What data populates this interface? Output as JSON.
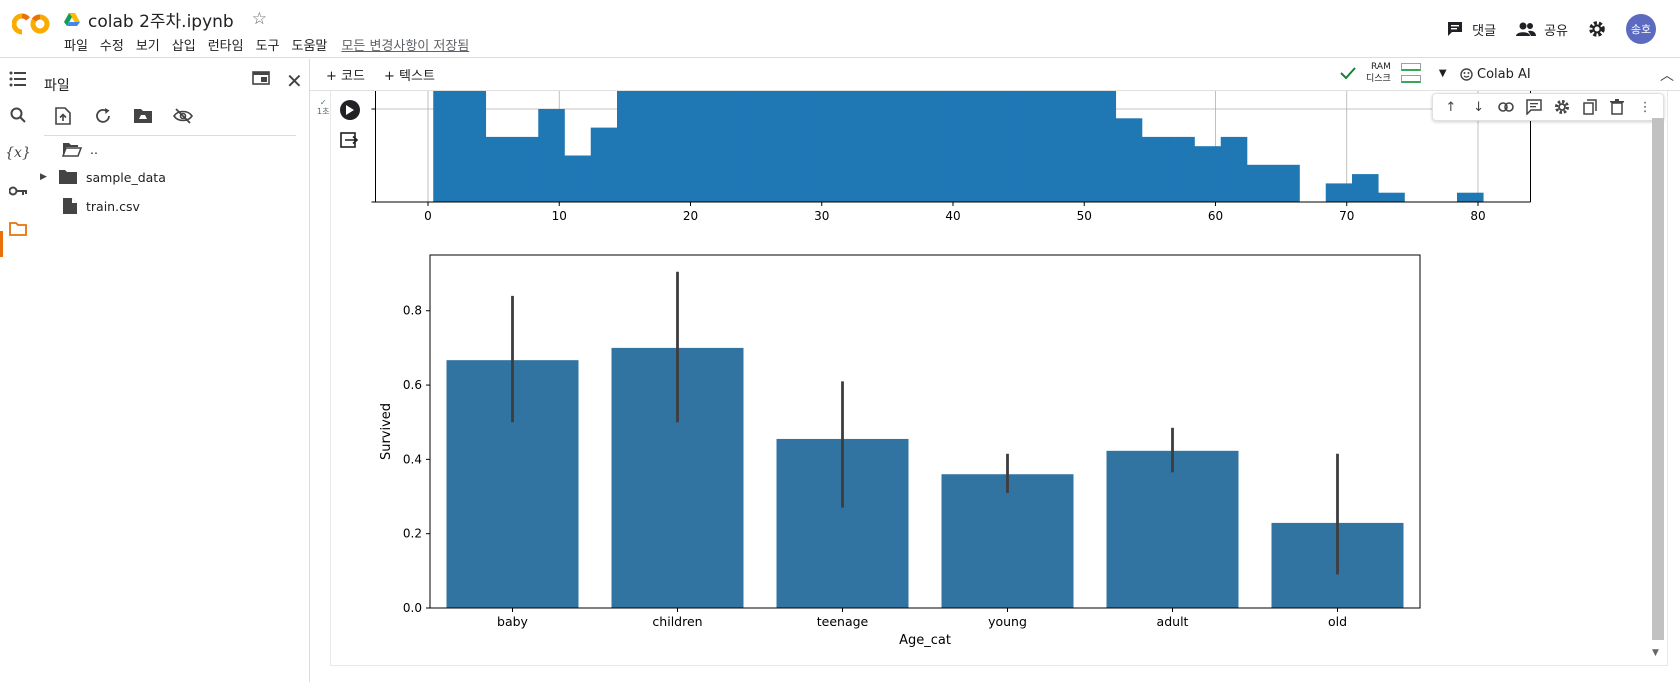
{
  "app": {
    "title": "colab 2주차.ipynb",
    "menu": [
      "파일",
      "수정",
      "보기",
      "삽입",
      "런타임",
      "도구",
      "도움말"
    ],
    "saved_status": "모든 변경사항이 저장됨",
    "comments_label": "댓글",
    "share_label": "공유",
    "avatar_text": "송호"
  },
  "colors": {
    "accent": "#e8710a",
    "bar_blue": "#1f77b4",
    "bar_blue2": "#3274a1",
    "error_bar": "#3d3d3d",
    "ok_green": "#34a853"
  },
  "files": {
    "title": "파일",
    "items": [
      {
        "name": "..",
        "type": "folder-open"
      },
      {
        "name": "sample_data",
        "type": "folder"
      },
      {
        "name": "train.csv",
        "type": "file"
      }
    ]
  },
  "toolbar": {
    "add_code": "+ 코드",
    "add_text": "+ 텍스트",
    "ram_label": "RAM",
    "disk_label": "디스크",
    "colab_ai_label": "Colab AI"
  },
  "cell": {
    "status": "✓",
    "elapsed": "1초"
  },
  "chart_data": [
    {
      "type": "bar",
      "title": "",
      "xlabel": "",
      "ylabel": "",
      "xlim": [
        -4,
        84
      ],
      "xticks": [
        0,
        10,
        20,
        30,
        40,
        50,
        60,
        70,
        80
      ],
      "yticks_visible": [
        0,
        10
      ],
      "note": "histogram; y axis cropped at top of visible area",
      "bin_width": 2,
      "bin_edges_start": 0.4,
      "values": [
        14,
        14,
        7,
        7,
        10,
        5,
        8,
        14,
        14,
        14,
        14,
        14,
        14,
        14,
        14,
        14,
        14,
        14,
        14,
        14,
        14,
        14,
        14,
        14,
        14,
        14,
        9,
        7,
        7,
        6,
        7,
        4,
        4,
        0,
        2,
        3,
        1,
        0,
        0,
        1
      ]
    },
    {
      "type": "bar",
      "title": "",
      "xlabel": "Age_cat",
      "ylabel": "Survived",
      "categories": [
        "baby",
        "children",
        "teenage",
        "young",
        "adult",
        "old"
      ],
      "values": [
        0.667,
        0.7,
        0.455,
        0.36,
        0.423,
        0.229
      ],
      "error_low": [
        0.5,
        0.5,
        0.27,
        0.31,
        0.365,
        0.09
      ],
      "error_high": [
        0.84,
        0.905,
        0.61,
        0.415,
        0.485,
        0.415
      ],
      "ylim": [
        0,
        0.95
      ],
      "yticks": [
        0.0,
        0.2,
        0.4,
        0.6,
        0.8
      ]
    }
  ]
}
